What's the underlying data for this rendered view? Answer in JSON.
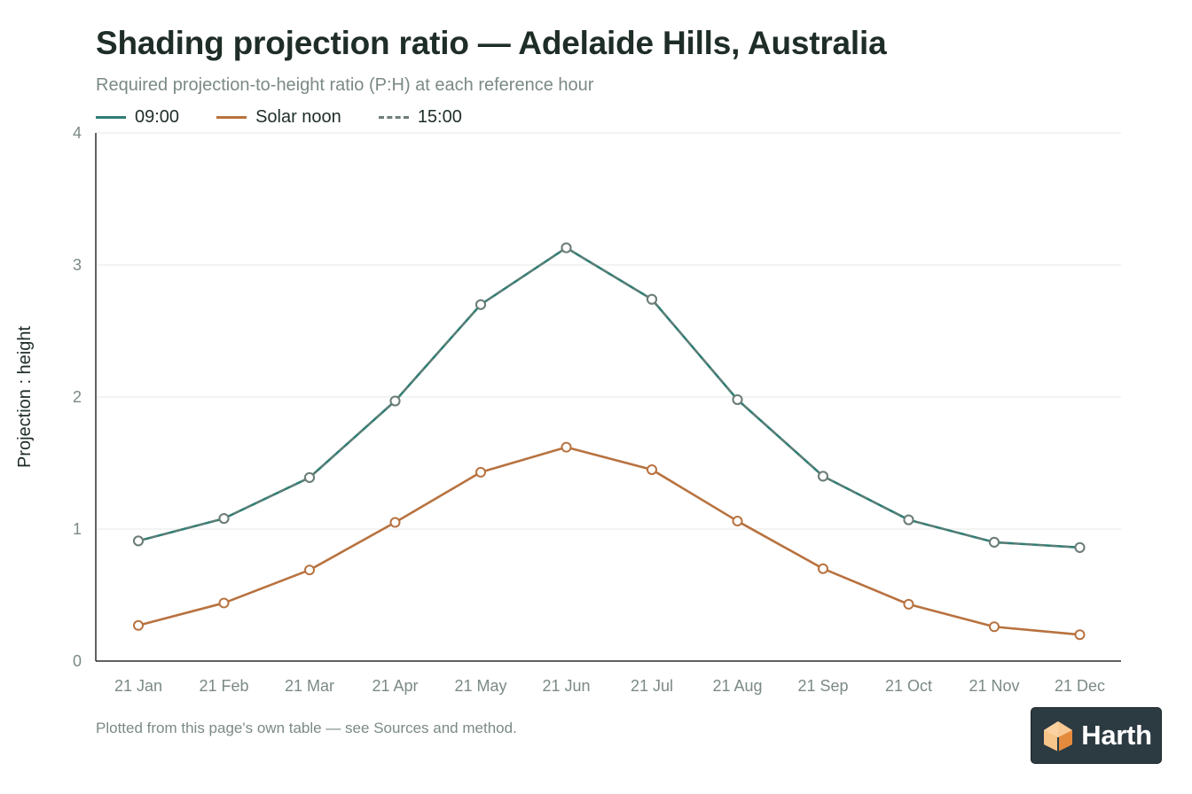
{
  "chart_data": {
    "type": "line",
    "title": "Shading projection ratio — Adelaide Hills, Australia",
    "subtitle": "Required projection-to-height ratio (P:H) at each reference hour",
    "xlabel": "",
    "ylabel": "Projection : height",
    "ylim": [
      0,
      4
    ],
    "yticks": [
      "0",
      "1",
      "2",
      "3",
      "4"
    ],
    "grid": true,
    "legend_position": "top-left",
    "categories": [
      "21 Jan",
      "21 Feb",
      "21 Mar",
      "21 Apr",
      "21 May",
      "21 Jun",
      "21 Jul",
      "21 Aug",
      "21 Sep",
      "21 Oct",
      "21 Nov",
      "21 Dec"
    ],
    "series": [
      {
        "name": "09:00",
        "color": "#2f7d73",
        "dash": "solid",
        "values": [
          0.91,
          1.08,
          1.39,
          1.97,
          2.7,
          3.13,
          2.74,
          1.98,
          1.4,
          1.07,
          0.9,
          0.86
        ]
      },
      {
        "name": "Solar noon",
        "color": "#b8723f",
        "dash": "solid",
        "values": [
          0.27,
          0.44,
          0.69,
          1.05,
          1.43,
          1.62,
          1.45,
          1.06,
          0.7,
          0.43,
          0.26,
          0.2
        ]
      },
      {
        "name": "15:00",
        "color": "#6e7d78",
        "dash": "dashed",
        "values": [
          0.91,
          1.08,
          1.39,
          1.97,
          2.7,
          3.13,
          2.74,
          1.98,
          1.4,
          1.07,
          0.9,
          0.86
        ]
      }
    ]
  },
  "footnote": "Plotted from this page's own table — see Sources and method.",
  "brand": {
    "name": "Harth",
    "icon": "house-cube-icon"
  }
}
